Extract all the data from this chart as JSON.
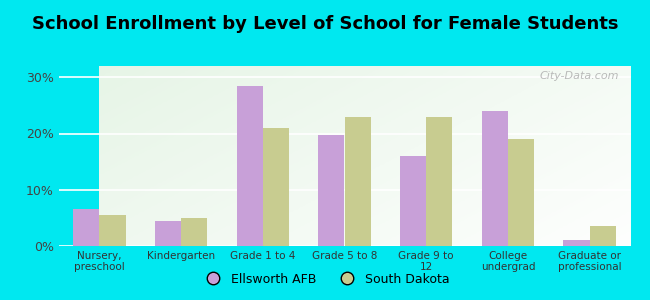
{
  "title": "School Enrollment by Level of School for Female Students",
  "categories": [
    "Nursery,\npreschool",
    "Kindergarten",
    "Grade 1 to 4",
    "Grade 5 to 8",
    "Grade 9 to\n12",
    "College\nundergrad",
    "Graduate or\nprofessional"
  ],
  "ellsworth_values": [
    6.5,
    4.5,
    28.5,
    19.7,
    16.0,
    24.0,
    1.0
  ],
  "southdakota_values": [
    5.5,
    5.0,
    21.0,
    23.0,
    23.0,
    19.0,
    3.5
  ],
  "ellsworth_color": "#c8a0d8",
  "southdakota_color": "#c8cc90",
  "background_outer": "#00e8f0",
  "background_inner_left": "#b8ddb0",
  "background_inner_right": "#e8f5e8",
  "background_inner_top": "#ffffff",
  "ylim": [
    0,
    32
  ],
  "yticks": [
    0,
    10,
    20,
    30
  ],
  "yticklabels": [
    "0%",
    "10%",
    "20%",
    "30%"
  ],
  "legend_labels": [
    "Ellsworth AFB",
    "South Dakota"
  ],
  "watermark": "City-Data.com",
  "bar_width": 0.32
}
